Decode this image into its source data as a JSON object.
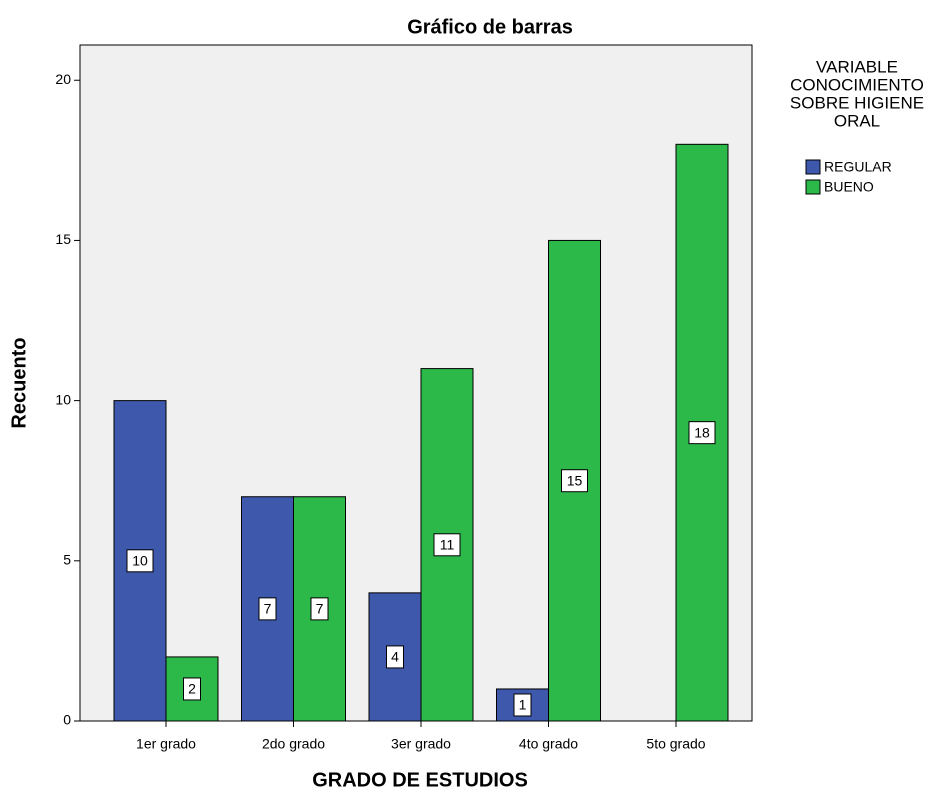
{
  "chart_data": {
    "type": "bar",
    "title": "Gráfico de barras",
    "x_label": "GRADO DE ESTUDIOS",
    "y_label": "Recuento",
    "legend_title": [
      "VARIABLE",
      "CONOCIMIENTO",
      "SOBRE HIGIENE",
      "ORAL"
    ],
    "categories": [
      "1er grado",
      "2do grado",
      "3er grado",
      "4to grado",
      "5to grado"
    ],
    "series": [
      {
        "name": "REGULAR",
        "color": "#3e58ac",
        "values": [
          10,
          7,
          4,
          1,
          null
        ]
      },
      {
        "name": "BUENO",
        "color": "#2db84a",
        "values": [
          2,
          7,
          11,
          15,
          18
        ]
      }
    ],
    "ylim": [
      0,
      21.1
    ],
    "yticks": [
      0,
      5,
      10,
      15,
      20
    ],
    "legend": "right"
  }
}
